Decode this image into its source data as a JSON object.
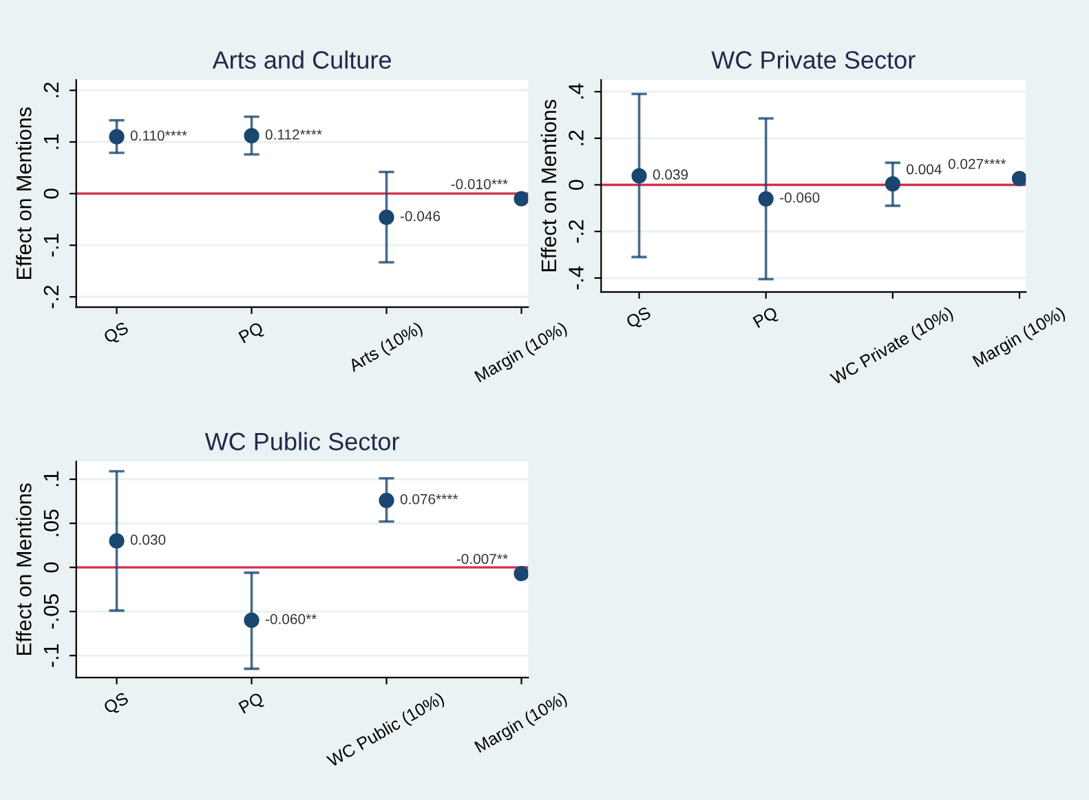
{
  "chart_data": [
    {
      "type": "scatter",
      "title": "Arts and Culture",
      "ylabel": "Effect on Mentions",
      "categories": [
        "QS",
        "PQ",
        "Arts (10%)",
        "Margin (10%)"
      ],
      "series": [
        {
          "color": "#1a476f",
          "values": [
            0.11,
            0.112,
            -0.046,
            -0.01
          ],
          "errors": [
            [
              0.079,
              0.142
            ],
            [
              0.076,
              0.149
            ],
            [
              -0.133,
              0.042
            ],
            null
          ],
          "value_labels": [
            "0.110****",
            "0.112****",
            "-0.046",
            "-0.010***"
          ]
        }
      ],
      "ylim": [
        -0.22,
        0.22
      ],
      "yticks": [
        {
          "value": -0.2,
          "label": "-.2"
        },
        {
          "value": -0.1,
          "label": "-.1"
        },
        0,
        {
          "value": 0.1,
          "label": ".1"
        },
        {
          "value": 0.2,
          "label": ".2"
        }
      ],
      "ref_lines": [
        {
          "axis": "y",
          "value": 0,
          "color": "#d62d4f"
        }
      ],
      "grid": "y",
      "marker": "circle",
      "legend": false
    },
    {
      "type": "scatter",
      "title": "WC Private Sector",
      "ylabel": "Effect on Mentions",
      "categories": [
        "QS",
        "PQ",
        "WC Private (10%)",
        "Margin (10%)"
      ],
      "series": [
        {
          "color": "#1a476f",
          "values": [
            0.039,
            -0.06,
            0.004,
            0.027
          ],
          "errors": [
            [
              -0.31,
              0.39
            ],
            [
              -0.405,
              0.285
            ],
            [
              -0.09,
              0.095
            ],
            null
          ],
          "value_labels": [
            "0.039",
            "-0.060",
            "0.004",
            "0.027****"
          ]
        }
      ],
      "ylim": [
        -0.46,
        0.45
      ],
      "yticks": [
        {
          "value": -0.4,
          "label": "-.4"
        },
        {
          "value": -0.2,
          "label": "-.2"
        },
        0,
        {
          "value": 0.2,
          "label": ".2"
        },
        {
          "value": 0.4,
          "label": ".4"
        }
      ],
      "ref_lines": [
        {
          "axis": "y",
          "value": 0,
          "color": "#d62d4f"
        }
      ],
      "grid": "y",
      "marker": "circle",
      "legend": false
    },
    {
      "type": "scatter",
      "title": "WC Public Sector",
      "ylabel": "Effect on Mentions",
      "categories": [
        "QS",
        "PQ",
        "WC Public (10%)",
        "Margin (10%)"
      ],
      "series": [
        {
          "color": "#1a476f",
          "values": [
            0.03,
            -0.06,
            0.076,
            -0.007
          ],
          "errors": [
            [
              -0.049,
              0.109
            ],
            [
              -0.115,
              -0.006
            ],
            [
              0.052,
              0.101
            ],
            null
          ],
          "value_labels": [
            "0.030",
            "-0.060**",
            "0.076****",
            "-0.007**"
          ]
        }
      ],
      "ylim": [
        -0.125,
        0.12
      ],
      "yticks": [
        {
          "value": -0.1,
          "label": "-.1"
        },
        {
          "value": -0.05,
          "label": "-.05"
        },
        0,
        {
          "value": 0.05,
          "label": ".05"
        },
        {
          "value": 0.1,
          "label": ".1"
        }
      ],
      "ref_lines": [
        {
          "axis": "y",
          "value": 0,
          "color": "#d62d4f"
        }
      ],
      "grid": "y",
      "marker": "circle",
      "legend": false
    }
  ]
}
